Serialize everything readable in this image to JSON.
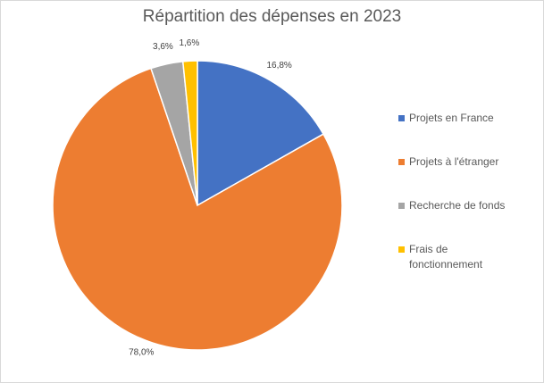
{
  "chart_data": {
    "type": "pie",
    "title": "Répartition des dépenses en 2023",
    "categories": [
      "Projets en France",
      "Projets à l'étranger",
      "Recherche de fonds",
      "Frais de fonctionnement"
    ],
    "values": [
      16.8,
      78.0,
      3.6,
      1.6
    ],
    "data_labels": [
      "16,8%",
      "78,0%",
      "3,6%",
      "1,6%"
    ],
    "colors": [
      "#4472C4",
      "#ED7D31",
      "#A5A5A5",
      "#FFC000"
    ],
    "legend": "right",
    "start": "12 o'clock",
    "direction": "clockwise"
  }
}
